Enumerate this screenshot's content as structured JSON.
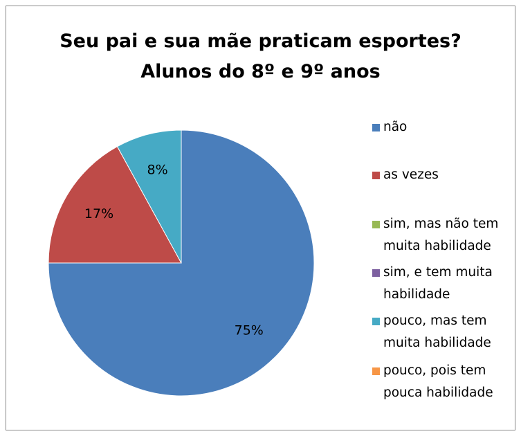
{
  "chart_data": {
    "type": "pie",
    "title": "Seu pai e sua mãe praticam esportes?\nAlunos do 8º e 9º anos",
    "categories": [
      "não",
      "as vezes",
      "sim, mas não tem muita habilidade",
      "sim, e tem muita habilidade",
      "pouco, mas tem muita habilidade",
      "pouco, pois tem pouca habilidade"
    ],
    "values": [
      75,
      17,
      0,
      0,
      8,
      0
    ],
    "value_labels": [
      "75%",
      "17%",
      null,
      null,
      "8%",
      null
    ],
    "colors": [
      "#4a7ebb",
      "#be4b48",
      "#98b954",
      "#7d60a0",
      "#46aac5",
      "#f79646"
    ],
    "legend": "right"
  }
}
